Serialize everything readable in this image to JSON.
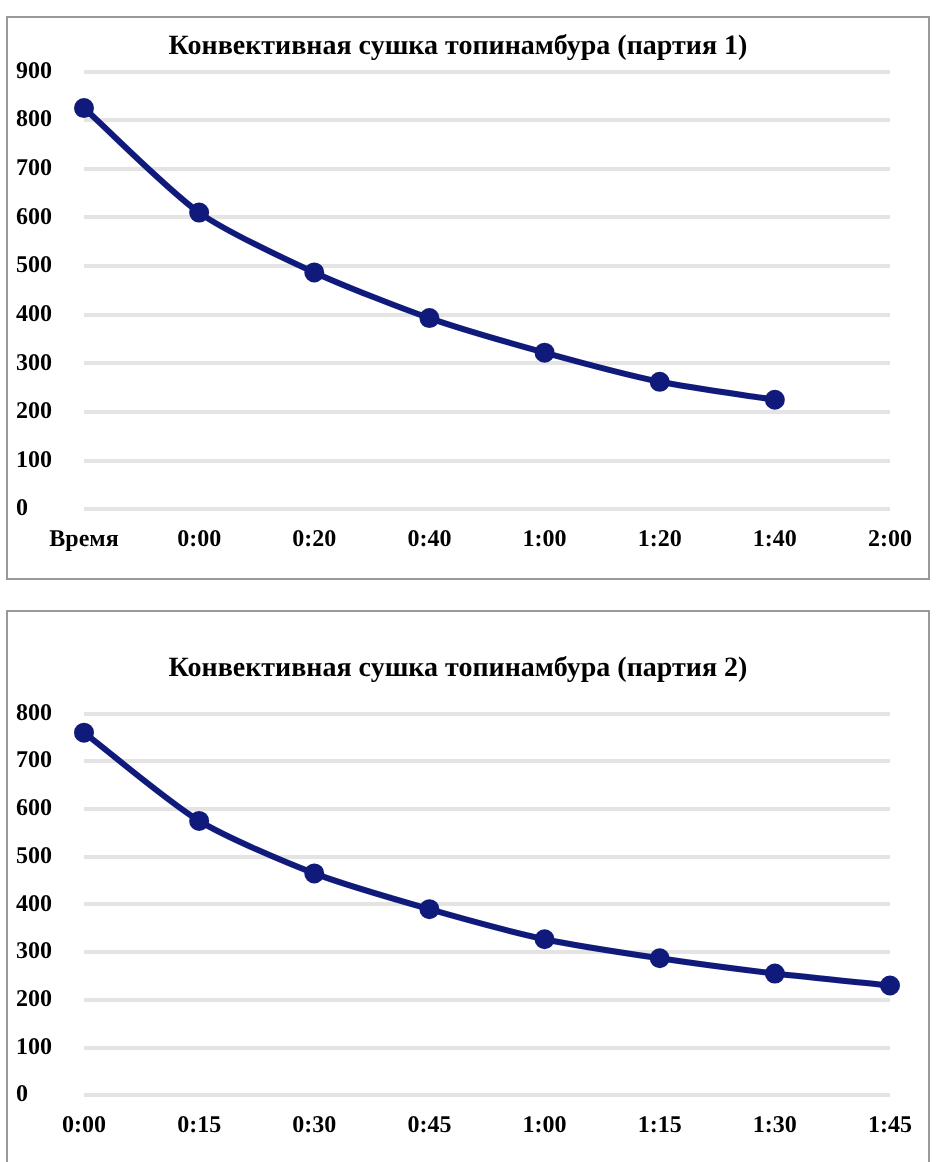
{
  "chart_data": [
    {
      "type": "line",
      "title": "Конвективная сушка топинамбура (партия 1)",
      "categories": [
        "Время",
        "0:00",
        "0:20",
        "0:40",
        "1:00",
        "1:20",
        "1:40",
        "2:00"
      ],
      "series": [
        {
          "color": "#0f1a7a",
          "values": [
            825,
            610,
            487,
            393,
            322,
            262,
            225,
            null
          ]
        }
      ],
      "ylim": [
        0,
        900
      ],
      "yticks": [
        0,
        100,
        200,
        300,
        400,
        500,
        600,
        700,
        800,
        900
      ],
      "grid": "y",
      "legend": false,
      "marker": "circle",
      "line_style": "solid"
    },
    {
      "type": "line",
      "title": "Конвективная сушка топинамбура (партия 2)",
      "categories": [
        "0:00",
        "0:15",
        "0:30",
        "0:45",
        "1:00",
        "1:15",
        "1:30",
        "1:45"
      ],
      "series": [
        {
          "color": "#0f1a7a",
          "values": [
            760,
            575,
            465,
            390,
            327,
            287,
            255,
            230
          ]
        }
      ],
      "ylim": [
        0,
        800
      ],
      "yticks": [
        0,
        100,
        200,
        300,
        400,
        500,
        600,
        700,
        800
      ],
      "grid": "y",
      "legend": false,
      "marker": "circle",
      "line_style": "solid"
    }
  ]
}
